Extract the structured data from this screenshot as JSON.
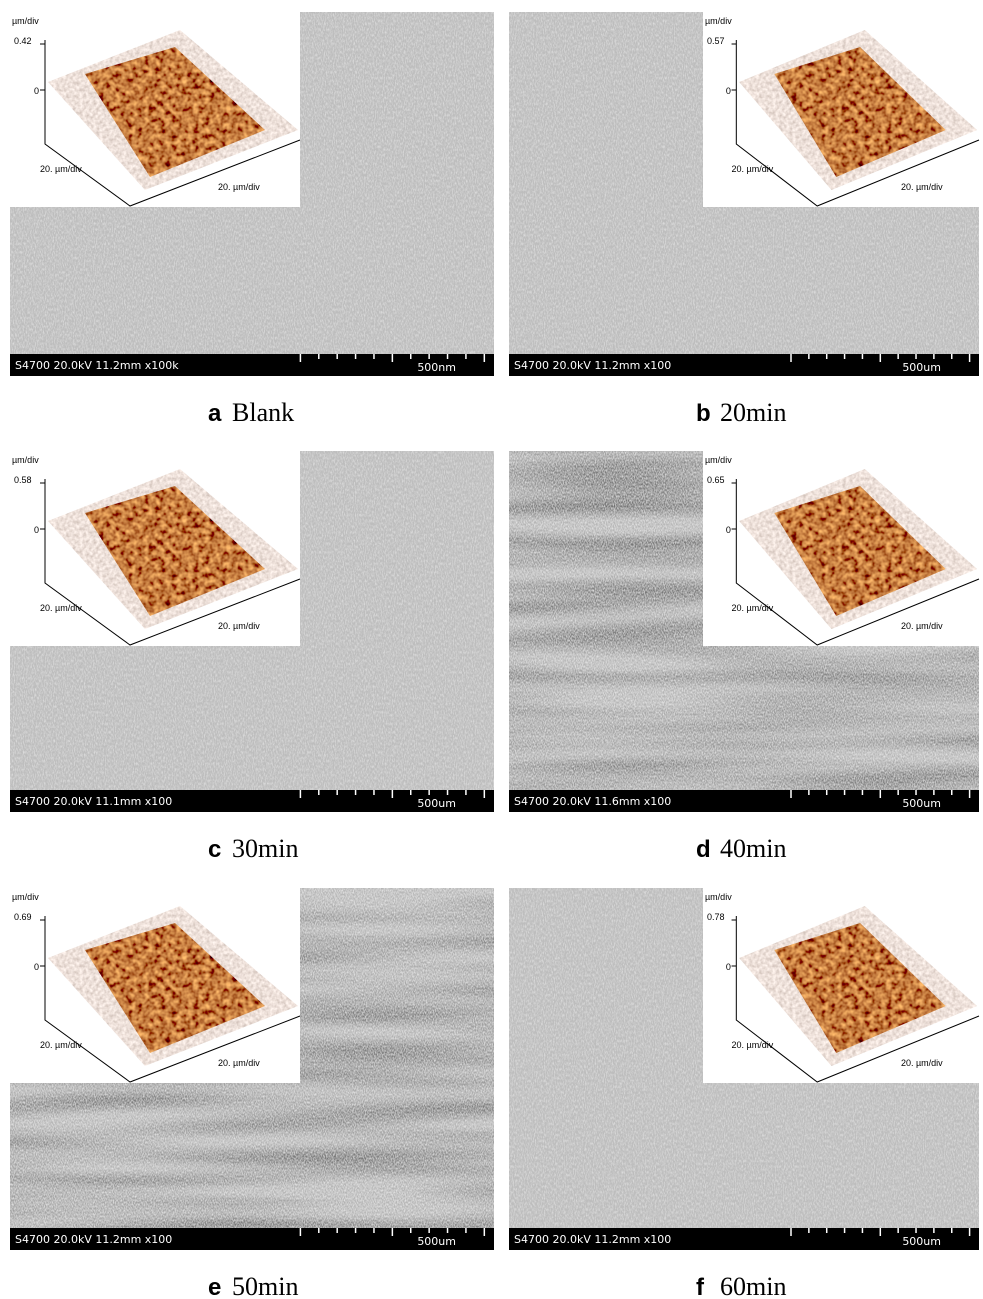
{
  "panels": [
    {
      "label": "a",
      "caption": "Blank",
      "info": "S4700 20.0kV 11.2mm x100k",
      "scale": "500nm",
      "afm": {
        "z_unit": "µm/div",
        "z_max": "0.42",
        "z_zero": "0",
        "x_axis": "20. µm/div",
        "y_axis": "20. µm/div"
      }
    },
    {
      "label": "b",
      "caption": "20min",
      "info": "S4700 20.0kV 11.2mm x100",
      "scale": "500um",
      "afm": {
        "z_unit": "µm/div",
        "z_max": "0.57",
        "z_zero": "0",
        "x_axis": "20. µm/div",
        "y_axis": "20. µm/div"
      }
    },
    {
      "label": "c",
      "caption": "30min",
      "info": "S4700 20.0kV 11.1mm x100",
      "scale": "500um",
      "afm": {
        "z_unit": "µm/div",
        "z_max": "0.58",
        "z_zero": "0",
        "x_axis": "20. µm/div",
        "y_axis": "20. µm/div"
      }
    },
    {
      "label": "d",
      "caption": "40min",
      "info": "S4700 20.0kV 11.6mm x100",
      "scale": "500um",
      "afm": {
        "z_unit": "µm/div",
        "z_max": "0.65",
        "z_zero": "0",
        "x_axis": "20. µm/div",
        "y_axis": "20. µm/div"
      }
    },
    {
      "label": "e",
      "caption": "50min",
      "info": "S4700 20.0kV 11.2mm x100",
      "scale": "500um",
      "afm": {
        "z_unit": "µm/div",
        "z_max": "0.69",
        "z_zero": "0",
        "x_axis": "20. µm/div",
        "y_axis": "20. µm/div"
      }
    },
    {
      "label": "f",
      "caption": "60min",
      "info": "S4700 20.0kV 11.2mm x100",
      "scale": "500um",
      "afm": {
        "z_unit": "µm/div",
        "z_max": "0.78",
        "z_zero": "0",
        "x_axis": "20. µm/div",
        "y_axis": "20. µm/div"
      }
    }
  ]
}
